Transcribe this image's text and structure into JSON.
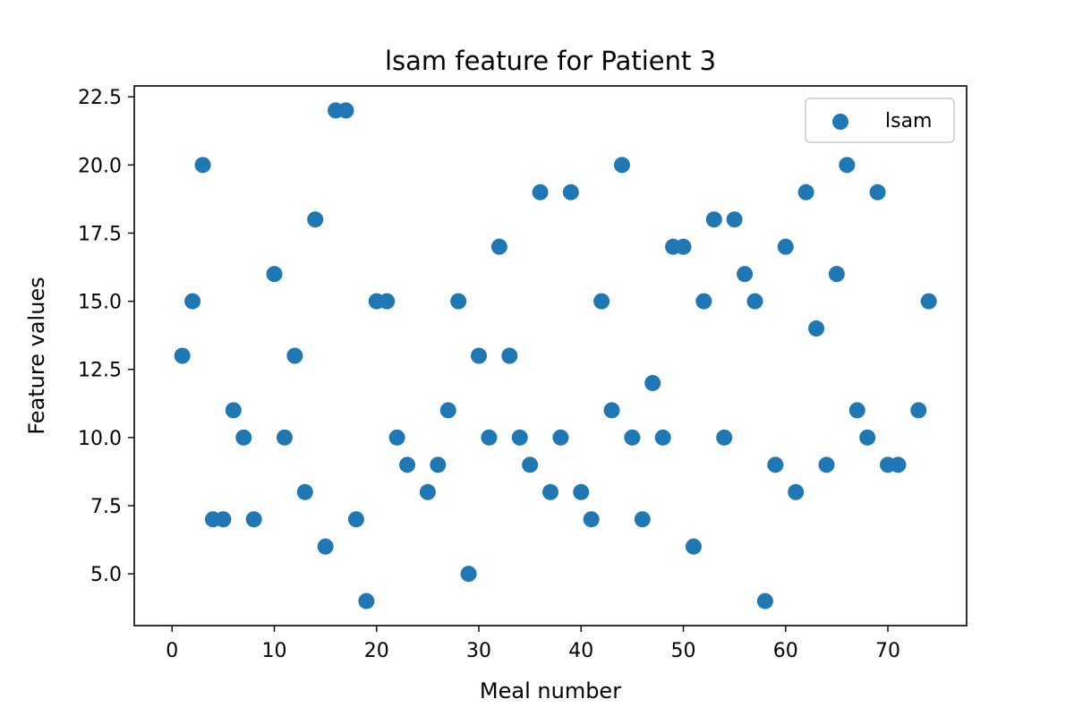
{
  "chart_data": {
    "type": "scatter",
    "title": "lsam feature for Patient 3",
    "xlabel": "Meal number",
    "ylabel": "Feature values",
    "xlim": [
      -3.7,
      77.7
    ],
    "ylim": [
      3.1,
      22.9
    ],
    "xticks": [
      0,
      10,
      20,
      30,
      40,
      50,
      60,
      70
    ],
    "xtick_labels": [
      "0",
      "10",
      "20",
      "30",
      "40",
      "50",
      "60",
      "70"
    ],
    "yticks": [
      5.0,
      7.5,
      10.0,
      12.5,
      15.0,
      17.5,
      20.0,
      22.5
    ],
    "ytick_labels": [
      "5.0",
      "7.5",
      "10.0",
      "12.5",
      "15.0",
      "17.5",
      "20.0",
      "22.5"
    ],
    "grid": false,
    "legend_position": "top-right",
    "series": [
      {
        "name": "lsam",
        "color": "#1f77b4",
        "marker": "circle",
        "x": [
          1,
          2,
          3,
          4,
          5,
          6,
          7,
          8,
          10,
          11,
          12,
          13,
          14,
          15,
          16,
          17,
          18,
          19,
          20,
          21,
          22,
          23,
          25,
          26,
          27,
          28,
          29,
          30,
          31,
          32,
          33,
          34,
          35,
          36,
          37,
          38,
          39,
          40,
          41,
          42,
          43,
          44,
          45,
          46,
          47,
          48,
          49,
          50,
          51,
          52,
          53,
          54,
          55,
          56,
          57,
          58,
          59,
          60,
          61,
          62,
          63,
          64,
          65,
          66,
          67,
          68,
          69,
          70,
          71,
          73,
          74
        ],
        "y": [
          13,
          15,
          20,
          7,
          7,
          11,
          10,
          7,
          16,
          10,
          13,
          8,
          18,
          6,
          22,
          22,
          7,
          4,
          15,
          15,
          10,
          9,
          8,
          9,
          11,
          15,
          5,
          13,
          10,
          17,
          13,
          10,
          9,
          19,
          8,
          10,
          19,
          8,
          7,
          15,
          11,
          20,
          10,
          7,
          12,
          10,
          17,
          17,
          6,
          15,
          18,
          10,
          18,
          16,
          15,
          4,
          9,
          17,
          8,
          19,
          14,
          9,
          16,
          20,
          11,
          10,
          19,
          9,
          9,
          11,
          15
        ]
      }
    ]
  }
}
